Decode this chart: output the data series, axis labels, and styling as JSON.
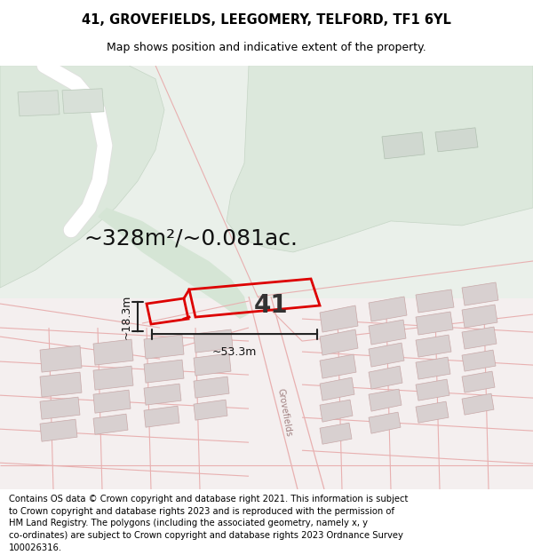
{
  "title_line1": "41, GROVEFIELDS, LEEGOMERY, TELFORD, TF1 6YL",
  "title_line2": "Map shows position and indicative extent of the property.",
  "area_text": "~328m²/~0.081ac.",
  "width_label": "~53.3m",
  "height_label": "~18.3m",
  "number_label": "41",
  "footer_text": "Contains OS data © Crown copyright and database right 2021. This information is subject to Crown copyright and database rights 2023 and is reproduced with the permission of HM Land Registry. The polygons (including the associated geometry, namely x, y co-ordinates) are subject to Crown copyright and database rights 2023 Ordnance Survey 100026316.",
  "bg_color": "#f2f5f2",
  "map_bg_top": "#e8ede8",
  "map_bg_bottom": "#f5f0f0",
  "green_area_color": "#ddeadd",
  "road_outline_color": "#e8b0b0",
  "building_fill": "#d8d0d0",
  "building_edge": "#c8a8a8",
  "plot_outline_color": "#dd0000",
  "dim_line_color": "#222222",
  "grovefields_road_color": "#d8c8c8",
  "title_fontsize": 10.5,
  "subtitle_fontsize": 9,
  "footer_fontsize": 7.2,
  "area_fontsize": 18,
  "label_fontsize": 9,
  "number_fontsize": 20
}
